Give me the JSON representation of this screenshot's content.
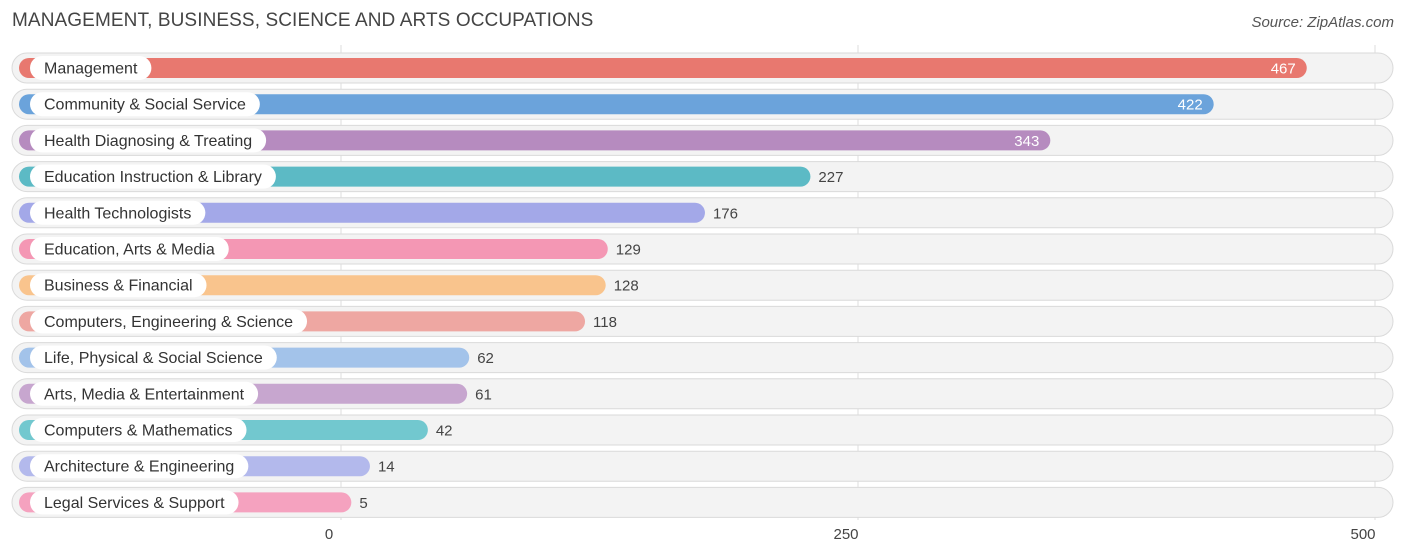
{
  "header": {
    "title": "MANAGEMENT, BUSINESS, SCIENCE AND ARTS OCCUPATIONS",
    "source": "Source: ZipAtlas.com"
  },
  "chart_data": {
    "type": "bar",
    "orientation": "horizontal",
    "title": "MANAGEMENT, BUSINESS, SCIENCE AND ARTS OCCUPATIONS",
    "xlabel": "",
    "ylabel": "",
    "xlim": [
      0,
      500
    ],
    "ticks": [
      0,
      250,
      500
    ],
    "tick_labels": [
      "0",
      "250",
      "500"
    ],
    "grid": true,
    "categories": [
      "Management",
      "Community & Social Service",
      "Health Diagnosing & Treating",
      "Education Instruction & Library",
      "Health Technologists",
      "Education, Arts & Media",
      "Business & Financial",
      "Computers, Engineering & Science",
      "Life, Physical & Social Science",
      "Arts, Media & Entertainment",
      "Computers & Mathematics",
      "Architecture & Engineering",
      "Legal Services & Support"
    ],
    "values": [
      467,
      422,
      343,
      227,
      176,
      129,
      128,
      118,
      62,
      61,
      42,
      14,
      5
    ],
    "value_labels": [
      "467",
      "422",
      "343",
      "227",
      "176",
      "129",
      "128",
      "118",
      "62",
      "61",
      "42",
      "14",
      "5"
    ],
    "colors": [
      "#e8786f",
      "#6ba3db",
      "#b68bbf",
      "#5cbac5",
      "#a3a8e8",
      "#f497b4",
      "#f9c48d",
      "#eea7a2",
      "#a3c3ea",
      "#c7a6cf",
      "#72c8cf",
      "#b3b9ec",
      "#f5a2bf"
    ],
    "labels_inside_bar_for_values": [
      467,
      422,
      343
    ]
  }
}
